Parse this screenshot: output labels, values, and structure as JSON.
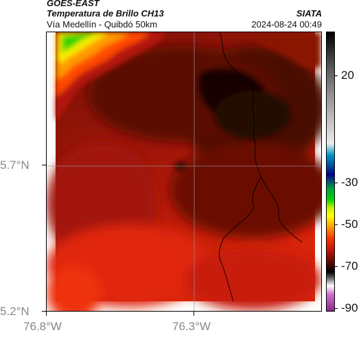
{
  "header": {
    "satellite": "GOES-EAST",
    "product": "Temperatura de Brillo CH13",
    "location": "Vía Medellín - Quibdó 50km",
    "agency": "SIATA",
    "datetime": "2024-08-24 00:49"
  },
  "axes": {
    "lat_labels": [
      "5.7°N",
      "5.2°N"
    ],
    "lon_labels": [
      "76.8°W",
      "76.3°W"
    ]
  },
  "colorbar": {
    "tick_labels": [
      "20",
      "-30",
      "-50",
      "-70",
      "-90"
    ]
  },
  "colors": {
    "cold_core": "#140606",
    "dark_red": "#5a0c06",
    "mid_red": "#b01408",
    "warm_red": "#e0280c",
    "orange": "#ff6a00",
    "yellow": "#f5f000",
    "green": "#2fd400"
  }
}
